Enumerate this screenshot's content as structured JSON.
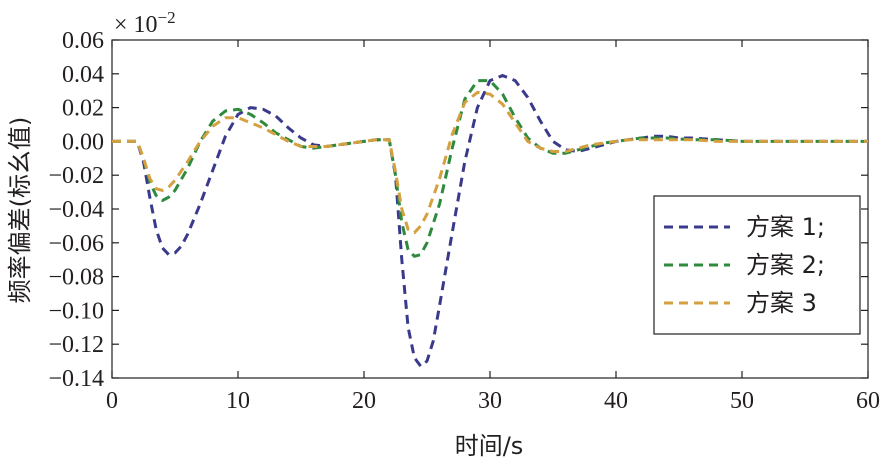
{
  "chart_data": {
    "type": "line",
    "title": "",
    "xlabel": "时间/s",
    "ylabel": "频率偏差(标幺值)",
    "y_multiplier": "× 10",
    "y_multiplier_exp": "−2",
    "xlim": [
      0,
      60
    ],
    "ylim": [
      -0.14,
      0.06
    ],
    "x_ticks": [
      0,
      10,
      20,
      30,
      40,
      50,
      60
    ],
    "x_tick_labels": [
      "0",
      "10",
      "20",
      "30",
      "40",
      "50",
      "60"
    ],
    "y_ticks": [
      0.06,
      0.04,
      0.02,
      0.0,
      -0.02,
      -0.04,
      -0.06,
      -0.08,
      -0.1,
      -0.12,
      -0.14
    ],
    "y_tick_labels": [
      "0.06",
      "0.04",
      "0.02",
      "0.00",
      "−0.02",
      "−0.04",
      "−0.06",
      "−0.08",
      "−0.10",
      "−0.12",
      "−0.14"
    ],
    "grid": false,
    "legend_position": "lower-right",
    "series": [
      {
        "name": "方案 1;",
        "color": "#3a3a8c",
        "x": [
          0,
          2,
          2.5,
          3,
          3.5,
          4,
          4.5,
          5,
          5.5,
          6,
          7,
          8,
          9,
          10,
          11,
          12,
          13,
          14,
          15,
          16,
          17,
          18,
          19,
          20,
          21,
          22,
          22.5,
          23,
          23.5,
          24,
          24.5,
          25,
          25.5,
          26,
          27,
          28,
          29,
          30,
          31,
          32,
          33,
          34,
          35,
          36,
          37,
          38,
          39,
          40,
          41,
          42,
          43,
          44,
          45,
          46,
          48,
          50,
          52,
          55,
          58,
          60
        ],
        "y": [
          0,
          0,
          -0.012,
          -0.033,
          -0.052,
          -0.063,
          -0.067,
          -0.066,
          -0.062,
          -0.055,
          -0.037,
          -0.017,
          0.003,
          0.016,
          0.02,
          0.019,
          0.015,
          0.008,
          0.002,
          -0.002,
          -0.003,
          -0.002,
          -0.001,
          0.0,
          0.001,
          0.001,
          -0.02,
          -0.07,
          -0.11,
          -0.128,
          -0.133,
          -0.13,
          -0.118,
          -0.097,
          -0.054,
          -0.012,
          0.02,
          0.036,
          0.039,
          0.036,
          0.026,
          0.012,
          0.0,
          -0.005,
          -0.006,
          -0.004,
          -0.002,
          0.0,
          0.001,
          0.002,
          0.003,
          0.003,
          0.002,
          0.002,
          0.001,
          0.0,
          0.0,
          0.0,
          0.0,
          0.0
        ]
      },
      {
        "name": "方案 2;",
        "color": "#2e8b3e",
        "x": [
          0,
          2,
          2.5,
          3,
          3.5,
          4,
          4.5,
          5,
          6,
          7,
          8,
          9,
          10,
          11,
          12,
          13,
          14,
          15,
          16,
          17,
          18,
          19,
          20,
          21,
          22,
          22.5,
          23,
          23.5,
          24,
          24.5,
          25,
          26,
          27,
          28,
          29,
          30,
          31,
          32,
          33,
          34,
          35,
          36,
          37,
          38,
          39,
          40,
          41,
          42,
          43,
          44,
          46,
          48,
          50,
          52,
          55,
          58,
          60
        ],
        "y": [
          0,
          0,
          -0.01,
          -0.024,
          -0.032,
          -0.035,
          -0.033,
          -0.029,
          -0.016,
          0.0,
          0.012,
          0.018,
          0.019,
          0.016,
          0.011,
          0.005,
          0.001,
          -0.003,
          -0.004,
          -0.003,
          -0.002,
          -0.001,
          0.0,
          0.001,
          0.001,
          -0.02,
          -0.048,
          -0.064,
          -0.068,
          -0.067,
          -0.06,
          -0.037,
          -0.004,
          0.025,
          0.036,
          0.036,
          0.028,
          0.014,
          0.002,
          -0.004,
          -0.007,
          -0.007,
          -0.005,
          -0.003,
          -0.001,
          0.0,
          0.001,
          0.002,
          0.002,
          0.002,
          0.001,
          0.001,
          0.0,
          0.0,
          0.0,
          0.0,
          0.0
        ]
      },
      {
        "name": "方案 3",
        "color": "#d4a040",
        "x": [
          0,
          2,
          2.5,
          3,
          3.5,
          4,
          4.5,
          5,
          6,
          7,
          8,
          9,
          10,
          11,
          12,
          13,
          14,
          15,
          16,
          17,
          18,
          19,
          20,
          21,
          22,
          22.5,
          23,
          23.5,
          24,
          24.5,
          25,
          26,
          27,
          28,
          29,
          30,
          31,
          32,
          33,
          34,
          35,
          36,
          37,
          38,
          39,
          40,
          41,
          42,
          43,
          44,
          46,
          48,
          50,
          52,
          55,
          58,
          60
        ],
        "y": [
          0,
          0,
          -0.01,
          -0.022,
          -0.028,
          -0.029,
          -0.027,
          -0.023,
          -0.012,
          0.0,
          0.009,
          0.014,
          0.014,
          0.011,
          0.008,
          0.004,
          0.0,
          -0.003,
          -0.003,
          -0.003,
          -0.002,
          -0.001,
          0.0,
          0.001,
          0.001,
          -0.018,
          -0.04,
          -0.052,
          -0.054,
          -0.05,
          -0.043,
          -0.022,
          0.004,
          0.023,
          0.029,
          0.028,
          0.022,
          0.011,
          0.0,
          -0.004,
          -0.006,
          -0.006,
          -0.004,
          -0.002,
          -0.001,
          0.0,
          0.001,
          0.001,
          0.001,
          0.001,
          0.001,
          0.0,
          0.0,
          0.0,
          0.0,
          0.0,
          0.0
        ]
      }
    ]
  }
}
